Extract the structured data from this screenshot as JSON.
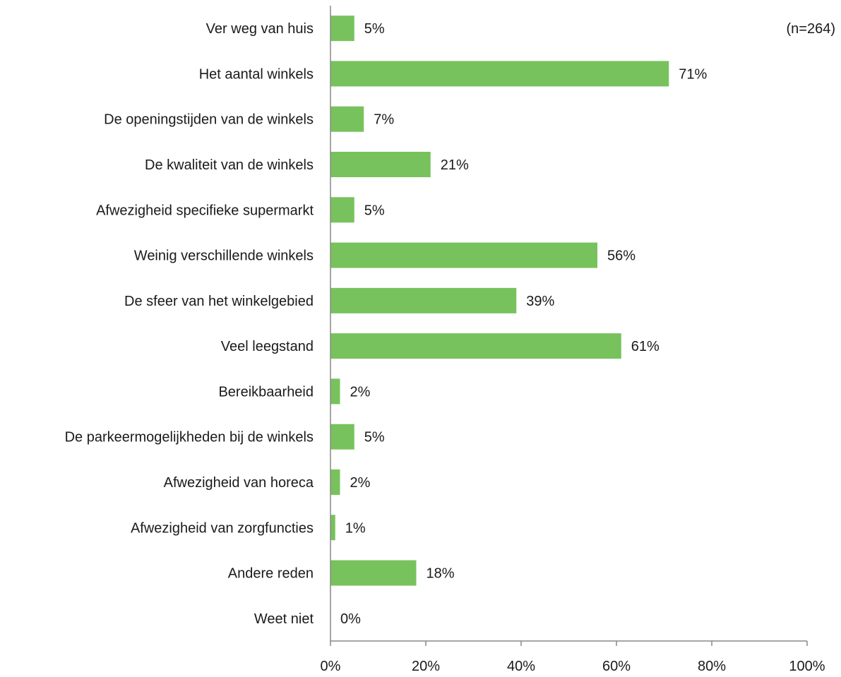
{
  "chart_data": {
    "type": "bar",
    "orientation": "horizontal",
    "note": "(n=264)",
    "categories": [
      "Ver weg van huis",
      "Het aantal winkels",
      "De openingstijden van de winkels",
      "De kwaliteit van de winkels",
      "Afwezigheid specifieke supermarkt",
      "Weinig verschillende winkels",
      "De sfeer van het winkelgebied",
      "Veel leegstand",
      "Bereikbaarheid",
      "De parkeermogelijkheden bij de winkels",
      "Afwezigheid van horeca",
      "Afwezigheid van zorgfuncties",
      "Andere reden",
      "Weet niet"
    ],
    "values": [
      5,
      71,
      7,
      21,
      5,
      56,
      39,
      61,
      2,
      5,
      2,
      1,
      18,
      0
    ],
    "value_labels": [
      "5%",
      "71%",
      "7%",
      "21%",
      "5%",
      "56%",
      "39%",
      "61%",
      "2%",
      "5%",
      "2%",
      "1%",
      "18%",
      "0%"
    ],
    "xlim": [
      0,
      100
    ],
    "xticks": [
      0,
      20,
      40,
      60,
      80,
      100
    ],
    "xtick_labels": [
      "0%",
      "20%",
      "40%",
      "60%",
      "80%",
      "100%"
    ],
    "grid": false,
    "legend": "none",
    "bar_color": "#77c25c"
  }
}
